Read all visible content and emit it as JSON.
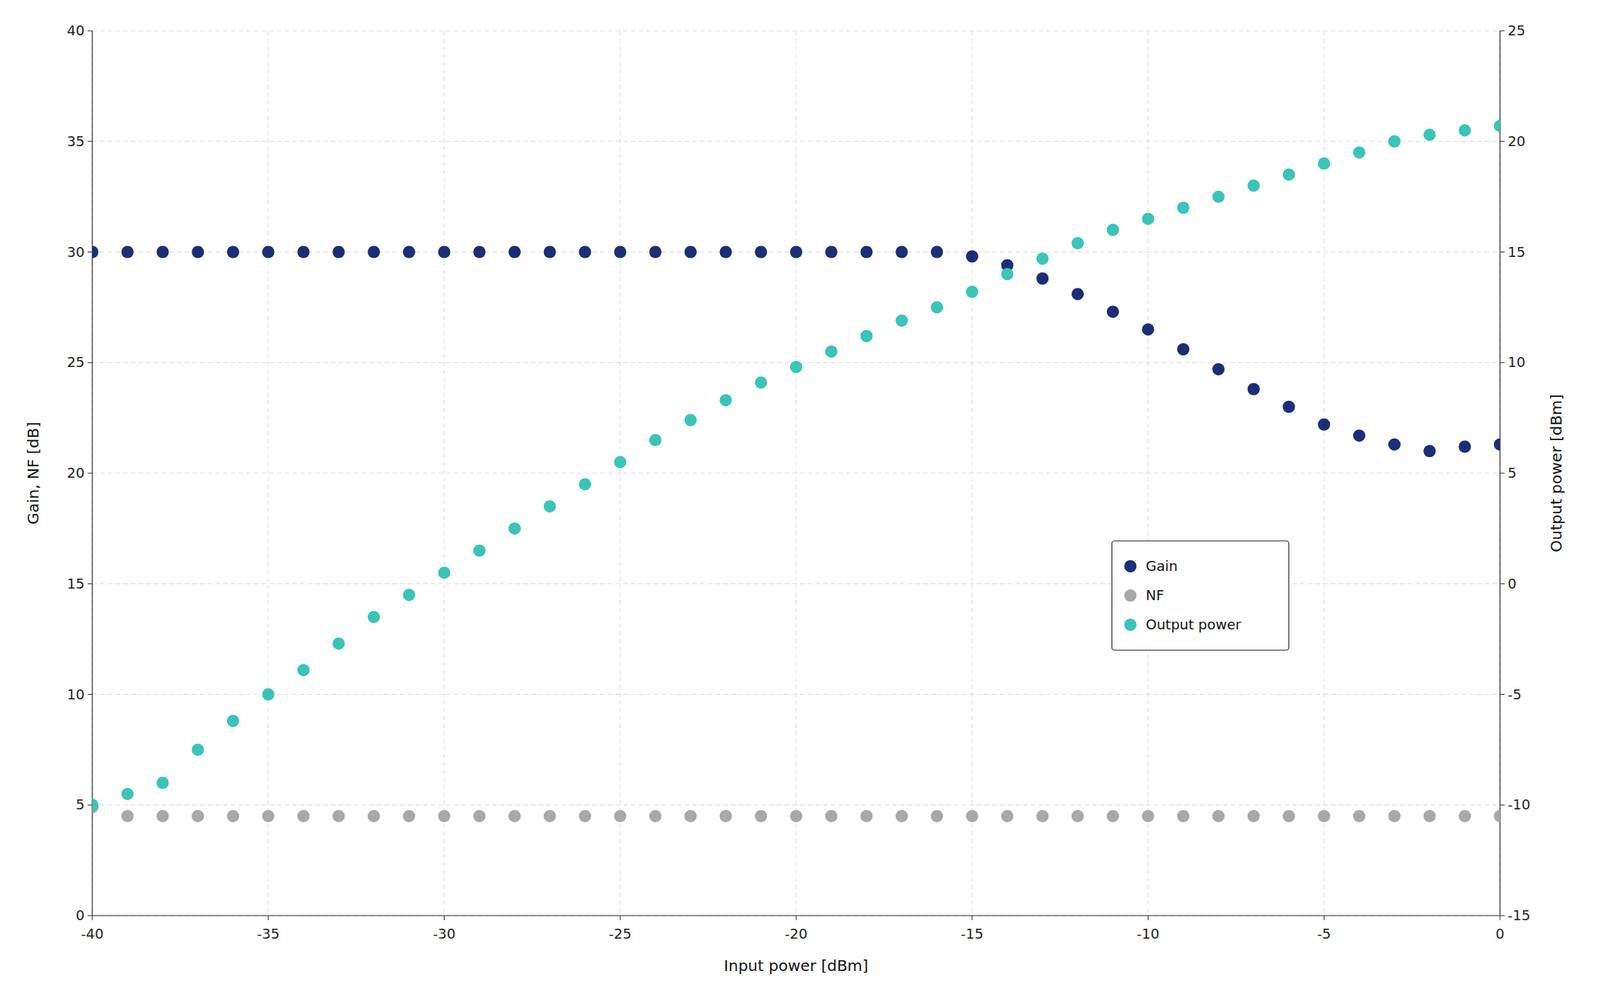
{
  "chart_data": {
    "type": "scatter",
    "xlabel": "Input power [dBm]",
    "ylabel": "Gain, NF [dB]",
    "y2label": "Output power [dBm]",
    "xlim": [
      -40,
      0
    ],
    "ylim": [
      0,
      40
    ],
    "y2lim": [
      -15,
      25
    ],
    "xticks": [
      -40,
      -35,
      -30,
      -25,
      -20,
      -15,
      -10,
      -5,
      0
    ],
    "yticks": [
      0,
      5,
      10,
      15,
      20,
      25,
      30,
      35,
      40
    ],
    "y2ticks": [
      -15,
      -10,
      -5,
      0,
      5,
      10,
      15,
      20,
      25
    ],
    "grid": true,
    "legend": "lower right",
    "x": [
      -40,
      -39,
      -38,
      -37,
      -36,
      -35,
      -34,
      -33,
      -32,
      -31,
      -30,
      -29,
      -28,
      -27,
      -26,
      -25,
      -24,
      -23,
      -22,
      -21,
      -20,
      -19,
      -18,
      -17,
      -16,
      -15,
      -14,
      -13,
      -12,
      -11,
      -10,
      -9,
      -8,
      -7,
      -6,
      -5,
      -4,
      -3,
      -2,
      -1,
      0
    ],
    "series": [
      {
        "name": "Gain",
        "color": "#1c2e78",
        "marker": "circle",
        "axis": "y",
        "values": [
          30.0,
          30.0,
          30.0,
          30.0,
          30.0,
          30.0,
          30.0,
          30.0,
          30.0,
          30.0,
          30.0,
          30.0,
          30.0,
          30.0,
          30.0,
          30.0,
          30.0,
          30.0,
          30.0,
          30.0,
          30.0,
          30.0,
          30.0,
          30.0,
          30.0,
          29.8,
          29.4,
          28.8,
          28.1,
          27.3,
          26.5,
          25.6,
          24.7,
          23.8,
          23.0,
          22.2,
          21.7,
          21.3,
          21.0,
          21.2,
          21.3
        ]
      },
      {
        "name": "NF",
        "color": "#a8a8a8",
        "marker": "circle",
        "axis": "y",
        "values": [
          4.9,
          4.5,
          4.5,
          4.5,
          4.5,
          4.5,
          4.5,
          4.5,
          4.5,
          4.5,
          4.5,
          4.5,
          4.5,
          4.5,
          4.5,
          4.5,
          4.5,
          4.5,
          4.5,
          4.5,
          4.5,
          4.5,
          4.5,
          4.5,
          4.5,
          4.5,
          4.5,
          4.5,
          4.5,
          4.5,
          4.5,
          4.5,
          4.5,
          4.5,
          4.5,
          4.5,
          4.5,
          4.5,
          4.5,
          4.5,
          4.5
        ]
      },
      {
        "name": "Output power",
        "color": "#3ac4b8",
        "marker": "circle",
        "axis": "y2",
        "values": [
          -10.0,
          -9.5,
          -9.0,
          -7.5,
          -6.2,
          -5.0,
          -3.9,
          -2.7,
          -1.5,
          -0.5,
          0.5,
          1.5,
          2.5,
          3.5,
          4.5,
          5.5,
          6.5,
          7.4,
          8.3,
          9.1,
          9.8,
          10.5,
          11.2,
          11.9,
          12.5,
          13.2,
          14.0,
          14.7,
          15.4,
          16.0,
          16.5,
          17.0,
          17.5,
          18.0,
          18.5,
          19.0,
          19.5,
          20.0,
          20.3,
          20.5,
          20.7
        ]
      }
    ]
  }
}
